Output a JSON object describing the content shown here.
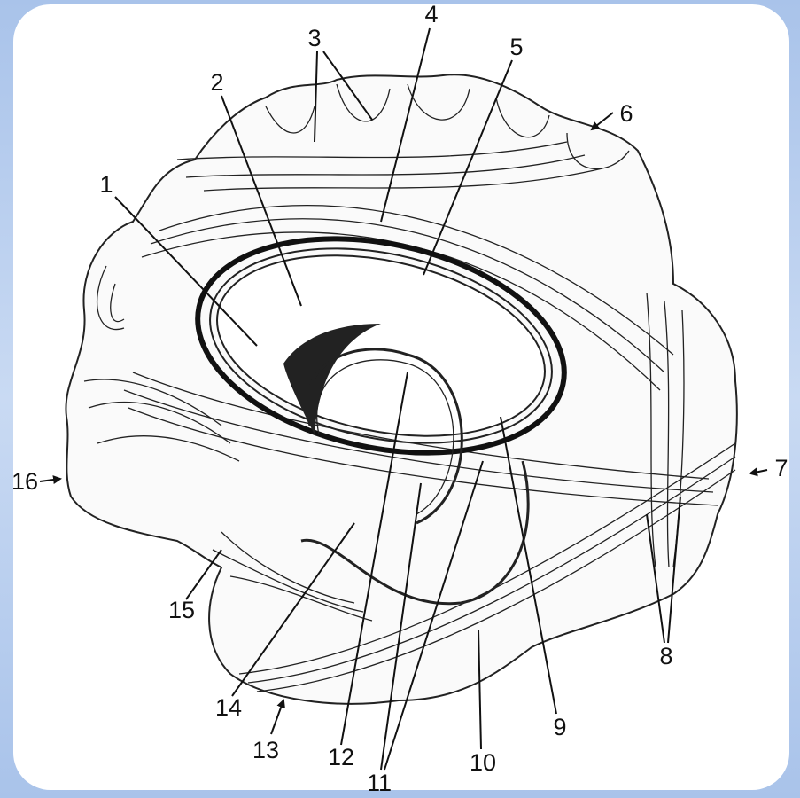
{
  "labels": [
    "1",
    "2",
    "3",
    "4",
    "5",
    "6",
    "7",
    "8",
    "9",
    "10",
    "11",
    "12",
    "13",
    "14",
    "15",
    "16"
  ]
}
